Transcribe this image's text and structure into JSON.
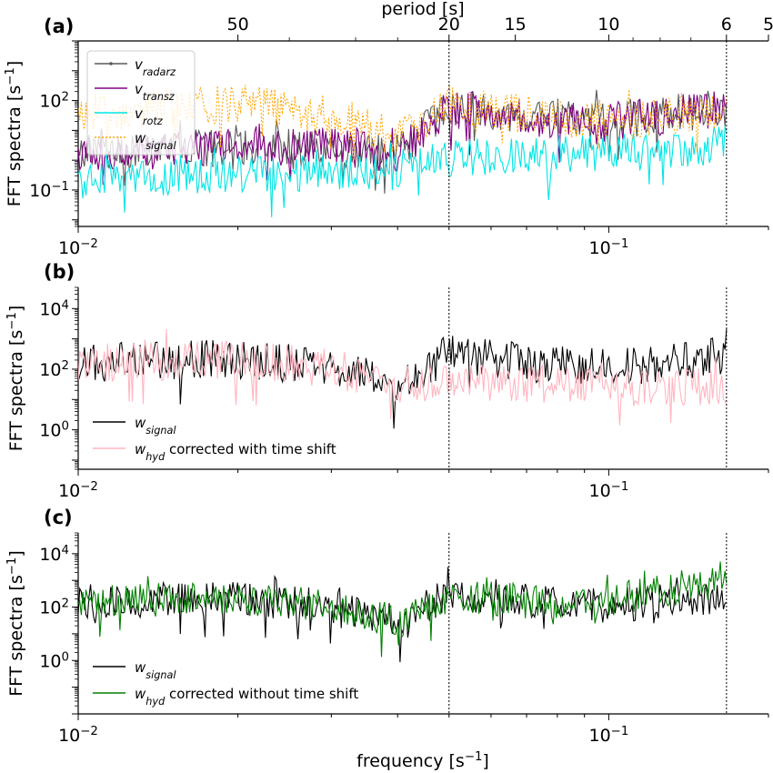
{
  "figure": {
    "xlabel": "frequency [s$^{-1}$]",
    "top_axis_label": "period [s]",
    "top_axis_ticks": [
      "50",
      "20",
      "15",
      "10",
      "6",
      "5"
    ],
    "top_axis_tick_values": [
      50,
      20,
      15,
      10,
      6,
      5
    ],
    "dotted_vlines_freq": [
      0.05,
      0.1667
    ]
  },
  "chart_data": [
    {
      "type": "line",
      "panel": "(a)",
      "ylabel": "FFT spectra [s$^{-1}$]",
      "xscale": "log",
      "yscale": "log",
      "xlim": [
        0.01,
        0.2
      ],
      "ylim": [
        0.006,
        10000
      ],
      "x_ticks": [
        "10^-2",
        "10^-1"
      ],
      "y_ticks": [
        "10^-1",
        "10^2"
      ],
      "legend_loc": "upper-left",
      "series": [
        {
          "name": "v_radarz",
          "color": "#595959",
          "style": "solid-marker",
          "envelope": {
            "x": [
              0.01,
              0.02,
              0.03,
              0.04,
              0.05,
              0.07,
              0.1,
              0.167
            ],
            "y": [
              3,
              5,
              5,
              3,
              120,
              60,
              40,
              100
            ]
          }
        },
        {
          "name": "v_transz",
          "color": "#800080",
          "style": "solid",
          "envelope": {
            "x": [
              0.01,
              0.02,
              0.03,
              0.04,
              0.05,
              0.07,
              0.1,
              0.167
            ],
            "y": [
              3,
              5,
              5,
              3,
              100,
              50,
              35,
              100
            ]
          }
        },
        {
          "name": "v_rotz",
          "color": "#00e5e5",
          "style": "solid",
          "envelope": {
            "x": [
              0.01,
              0.02,
              0.03,
              0.04,
              0.05,
              0.07,
              0.1,
              0.167
            ],
            "y": [
              0.4,
              0.6,
              0.6,
              0.8,
              2,
              3,
              3,
              6
            ]
          }
        },
        {
          "name": "w_signal",
          "color": "#ffa500",
          "style": "dotted",
          "envelope": {
            "x": [
              0.01,
              0.02,
              0.03,
              0.04,
              0.05,
              0.07,
              0.1,
              0.167
            ],
            "y": [
              60,
              150,
              60,
              10,
              120,
              60,
              35,
              100
            ]
          }
        }
      ]
    },
    {
      "type": "line",
      "panel": "(b)",
      "ylabel": "FFT spectra [s$^{-1}$]",
      "xscale": "log",
      "yscale": "log",
      "xlim": [
        0.01,
        0.2
      ],
      "ylim": [
        0.05,
        50000
      ],
      "x_ticks": [
        "10^-2",
        "10^-1"
      ],
      "y_ticks": [
        "10^0",
        "10^2",
        "10^4"
      ],
      "legend_loc": "lower-left",
      "series": [
        {
          "name": "w_signal",
          "color": "#000000",
          "envelope": {
            "x": [
              0.01,
              0.02,
              0.03,
              0.04,
              0.05,
              0.07,
              0.1,
              0.167
            ],
            "y": [
              300,
              400,
              200,
              50,
              600,
              300,
              200,
              500
            ]
          }
        },
        {
          "name": "w_hyd corrected with time shift",
          "color": "#ffb6c1",
          "envelope": {
            "x": [
              0.01,
              0.02,
              0.03,
              0.04,
              0.05,
              0.07,
              0.1,
              0.167
            ],
            "y": [
              300,
              400,
              200,
              50,
              80,
              60,
              50,
              50
            ]
          }
        }
      ]
    },
    {
      "type": "line",
      "panel": "(c)",
      "ylabel": "FFT spectra [s$^{-1}$]",
      "xscale": "log",
      "yscale": "log",
      "xlim": [
        0.01,
        0.2
      ],
      "ylim": [
        0.01,
        60000
      ],
      "x_ticks": [
        "10^-2",
        "10^-1"
      ],
      "y_ticks": [
        "10^0",
        "10^2",
        "10^4"
      ],
      "legend_loc": "lower-left",
      "series": [
        {
          "name": "w_signal",
          "color": "#000000",
          "envelope": {
            "x": [
              0.01,
              0.02,
              0.03,
              0.04,
              0.05,
              0.07,
              0.1,
              0.167
            ],
            "y": [
              300,
              400,
              200,
              50,
              600,
              300,
              200,
              500
            ]
          }
        },
        {
          "name": "w_hyd corrected without time shift",
          "color": "#008000",
          "envelope": {
            "x": [
              0.01,
              0.02,
              0.03,
              0.04,
              0.05,
              0.07,
              0.1,
              0.167
            ],
            "y": [
              300,
              400,
              200,
              50,
              500,
              300,
              300,
              2000
            ]
          }
        }
      ]
    }
  ]
}
